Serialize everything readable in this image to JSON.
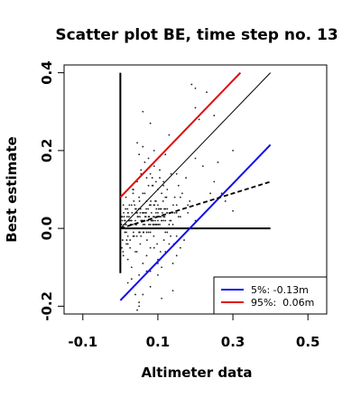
{
  "chart_data": {
    "type": "scatter",
    "title": "Scatter plot BE, time step no. 13",
    "xlabel": "Altimeter data",
    "ylabel": "Best estimate",
    "xlim": [
      -0.15,
      0.55
    ],
    "ylim": [
      -0.22,
      0.42
    ],
    "x_ticks": [
      -0.1,
      0.1,
      0.3,
      0.5
    ],
    "x_tick_labels": [
      "-0.1",
      "0.1",
      "0.3",
      "0.5"
    ],
    "y_ticks": [
      -0.2,
      0.0,
      0.2,
      0.4
    ],
    "y_tick_labels": [
      "-0.2",
      "0.0",
      "0.2",
      "0.4"
    ],
    "grid": false,
    "legend_position": "bottom-right",
    "legend": [
      {
        "label": "5%: -0.13m",
        "color": "#1010ee"
      },
      {
        "label": "95%:  0.06m",
        "color": "#dd1010"
      }
    ],
    "lines": [
      {
        "name": "zero-vertical",
        "color": "#000000",
        "style": "solid",
        "x": [
          0.0,
          0.0
        ],
        "y": [
          -0.115,
          0.4
        ]
      },
      {
        "name": "zero-horizontal",
        "color": "#000000",
        "style": "solid",
        "x": [
          0.0,
          0.4
        ],
        "y": [
          0.0,
          0.0
        ]
      },
      {
        "name": "identity",
        "color": "#000000",
        "style": "solid",
        "x": [
          0.0,
          0.4
        ],
        "y": [
          0.0,
          0.4
        ]
      },
      {
        "name": "upper-95",
        "color": "#dd1010",
        "style": "solid",
        "x": [
          0.0,
          0.32
        ],
        "y": [
          0.08,
          0.4
        ]
      },
      {
        "name": "lower-5",
        "color": "#1010ee",
        "style": "solid",
        "x": [
          0.0,
          0.4
        ],
        "y": [
          -0.185,
          0.215
        ]
      },
      {
        "name": "regression",
        "color": "#000000",
        "style": "dashed",
        "x": [
          0.0,
          0.4
        ],
        "y": [
          0.0,
          0.12
        ]
      }
    ],
    "points": {
      "color": "#222222",
      "x": [
        0.005,
        0.012,
        0.018,
        0.025,
        0.031,
        0.037,
        0.043,
        0.049,
        0.056,
        0.062,
        0.068,
        0.074,
        0.081,
        0.087,
        0.093,
        0.1,
        0.006,
        0.014,
        0.022,
        0.029,
        0.036,
        0.044,
        0.052,
        0.059,
        0.066,
        0.074,
        0.082,
        0.089,
        0.097,
        0.104,
        0.112,
        0.12,
        0.003,
        0.009,
        0.016,
        0.023,
        0.03,
        0.038,
        0.045,
        0.053,
        0.061,
        0.069,
        0.077,
        0.085,
        0.093,
        0.101,
        0.109,
        0.118,
        0.004,
        0.011,
        0.019,
        0.027,
        0.035,
        0.042,
        0.05,
        0.058,
        0.066,
        0.075,
        0.083,
        0.091,
        0.1,
        0.108,
        0.117,
        0.125,
        0.002,
        0.008,
        0.015,
        0.021,
        0.028,
        0.034,
        0.041,
        0.047,
        0.054,
        0.061,
        0.067,
        0.074,
        0.081,
        0.088,
        0.095,
        0.102,
        0.007,
        0.013,
        0.02,
        0.026,
        0.033,
        0.04,
        0.047,
        0.055,
        0.063,
        0.071,
        0.079,
        0.088,
        0.097,
        0.106,
        0.115,
        0.124,
        0.015,
        0.024,
        0.033,
        0.042,
        0.051,
        0.06,
        0.069,
        0.078,
        0.087,
        0.096,
        0.105,
        0.114,
        0.123,
        0.132,
        0.141,
        0.15,
        0.01,
        0.02,
        0.03,
        0.04,
        0.05,
        0.06,
        0.07,
        0.08,
        0.09,
        0.1,
        0.11,
        0.12,
        0.13,
        0.14,
        0.15,
        0.16,
        0.004,
        0.01,
        0.016,
        0.022,
        0.028,
        0.034,
        0.04,
        0.046,
        0.052,
        0.058,
        0.064,
        0.07,
        0.076,
        0.082,
        0.088,
        0.094,
        0.008,
        0.017,
        0.026,
        0.035,
        0.044,
        0.053,
        0.062,
        0.071,
        0.08,
        0.089,
        0.098,
        0.107,
        0.116,
        0.125,
        0.134,
        0.143,
        0.045,
        0.05,
        0.055,
        0.06,
        0.065,
        0.07,
        0.075,
        0.08,
        0.085,
        0.09,
        0.095,
        0.1,
        0.105,
        0.11,
        0.115,
        0.12,
        0.035,
        0.045,
        0.055,
        0.065,
        0.075,
        0.085,
        0.095,
        0.105,
        0.115,
        0.125,
        0.135,
        0.145,
        0.155,
        0.165,
        0.175,
        0.185,
        0.02,
        0.03,
        0.04,
        0.05,
        0.06,
        0.07,
        0.08,
        0.09,
        0.1,
        0.11,
        0.12,
        0.13,
        0.14,
        0.15,
        0.16,
        0.17,
        0.01,
        0.02,
        0.03,
        0.04,
        0.05,
        0.06,
        0.07,
        0.08,
        0.09,
        0.1,
        0.11,
        0.12,
        0.13,
        0.14,
        0.15,
        0.16,
        0.005,
        0.015,
        0.025,
        0.035,
        0.045,
        0.055,
        0.065,
        0.075,
        0.085,
        0.095,
        0.105,
        0.115,
        0.125,
        0.135,
        0.145,
        0.155,
        0.045,
        0.05,
        0.06,
        0.08,
        0.1,
        0.14,
        0.11,
        0.19,
        0.2,
        0.23,
        0.17,
        0.21,
        0.2,
        0.25,
        0.2,
        0.26,
        0.3,
        0.18,
        0.18,
        0.2,
        0.24,
        0.06,
        0.02,
        0.1,
        0.3,
        0.03,
        0.07,
        0.15,
        0.08,
        0.12,
        0.22,
        0.25,
        0.27,
        0.06,
        0.09,
        0.13,
        0.04,
        0.05,
        0.16,
        0.28
      ],
      "y": [
        0.02,
        -0.01,
        0.03,
        0.0,
        0.04,
        -0.02,
        0.01,
        0.05,
        0.02,
        -0.01,
        0.03,
        0.0,
        0.06,
        0.01,
        0.02,
        0.04,
        -0.03,
        0.05,
        0.02,
        0.01,
        0.07,
        -0.02,
        0.03,
        0.04,
        0.0,
        0.05,
        0.02,
        0.06,
        0.01,
        0.03,
        0.04,
        0.02,
        0.01,
        0.04,
        -0.04,
        0.03,
        0.02,
        0.06,
        0.0,
        0.04,
        -0.01,
        0.05,
        0.03,
        0.02,
        0.07,
        0.01,
        0.05,
        0.03,
        -0.05,
        0.02,
        0.05,
        0.01,
        -0.02,
        0.04,
        0.08,
        0.02,
        0.03,
        -0.01,
        0.04,
        0.06,
        0.02,
        0.03,
        0.05,
        0.04,
        0.03,
        0.06,
        0.01,
        0.04,
        0.02,
        0.09,
        0.0,
        0.03,
        0.05,
        0.01,
        0.04,
        0.02,
        0.07,
        0.03,
        0.01,
        0.05,
        -0.06,
        0.02,
        0.04,
        -0.03,
        0.01,
        0.05,
        0.03,
        -0.02,
        0.04,
        0.02,
        0.06,
        0.01,
        0.03,
        0.05,
        0.02,
        0.04,
        0.08,
        0.06,
        0.1,
        0.05,
        0.07,
        0.09,
        0.04,
        0.06,
        0.11,
        0.05,
        0.03,
        0.07,
        0.08,
        0.02,
        0.06,
        0.04,
        0.03,
        -0.04,
        0.06,
        0.02,
        -0.01,
        0.04,
        0.07,
        0.01,
        0.03,
        0.06,
        0.02,
        0.05,
        0.01,
        0.04,
        0.06,
        0.03,
        0.0,
        0.01,
        -0.01,
        0.02,
        0.0,
        -0.02,
        0.01,
        0.03,
        -0.01,
        0.0,
        0.02,
        -0.01,
        0.01,
        0.0,
        0.02,
        0.01,
        -0.07,
        -0.03,
        -0.05,
        -0.02,
        -0.06,
        -0.04,
        -0.01,
        -0.03,
        -0.05,
        -0.02,
        -0.04,
        -0.06,
        -0.03,
        -0.01,
        -0.02,
        -0.04,
        0.22,
        0.19,
        0.15,
        0.21,
        0.17,
        0.13,
        0.18,
        0.14,
        0.11,
        0.16,
        0.12,
        0.1,
        0.13,
        0.09,
        0.11,
        0.08,
        0.1,
        0.12,
        0.14,
        0.09,
        0.11,
        0.13,
        0.07,
        0.15,
        0.12,
        0.1,
        0.14,
        0.08,
        0.11,
        0.09,
        0.13,
        0.07,
        -0.08,
        -0.1,
        -0.06,
        -0.12,
        -0.09,
        -0.07,
        -0.11,
        -0.05,
        -0.08,
        -0.1,
        -0.06,
        -0.04,
        -0.09,
        -0.07,
        -0.05,
        -0.03,
        0.0,
        -0.02,
        0.01,
        0.0,
        -0.01,
        0.02,
        0.0,
        -0.01,
        0.01,
        0.0,
        0.02,
        -0.01,
        0.0,
        0.01,
        -0.02,
        0.0,
        0.03,
        0.01,
        0.02,
        -0.01,
        0.04,
        0.02,
        0.01,
        0.03,
        0.02,
        0.04,
        0.01,
        0.03,
        0.05,
        0.02,
        0.04,
        0.03,
        -0.21,
        -0.2,
        -0.17,
        -0.15,
        -0.12,
        -0.16,
        -0.18,
        0.37,
        0.36,
        0.35,
        0.25,
        0.28,
        0.31,
        0.29,
        0.18,
        0.17,
        0.2,
        0.06,
        0.04,
        0.02,
        0.09,
        0.0,
        -0.14,
        -0.09,
        0.045,
        -0.13,
        -0.11,
        0.14,
        0.27,
        0.19,
        0.16,
        0.12,
        0.09,
        0.3,
        0.2,
        0.24,
        -0.17,
        -0.19,
        0.08,
        0.07
      ]
    }
  }
}
